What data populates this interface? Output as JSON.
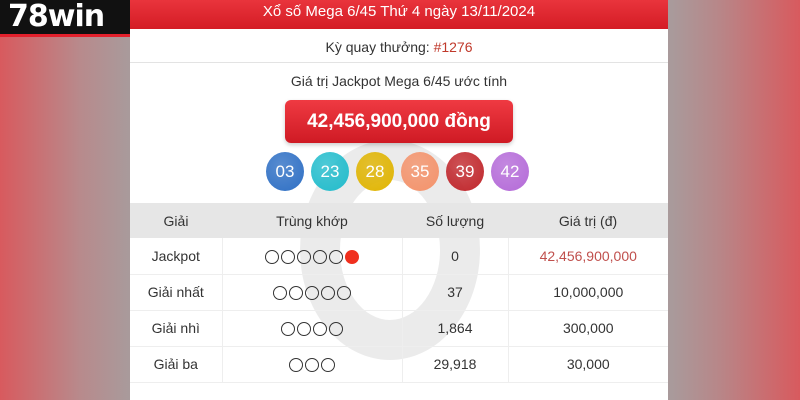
{
  "logo": "78win",
  "header": {
    "title": "Xổ số Mega 6/45 Thứ 4 ngày 13/11/2024"
  },
  "draw": {
    "label": "Kỳ quay thưởng: ",
    "number": "#1276"
  },
  "jackpot": {
    "label": "Giá trị Jackpot Mega 6/45 ước tính",
    "value": "42,456,900,000 đồng"
  },
  "balls": [
    {
      "n": "03",
      "color": "#2e6fc4"
    },
    {
      "n": "23",
      "color": "#22bccc"
    },
    {
      "n": "28",
      "color": "#e0b400"
    },
    {
      "n": "35",
      "color": "#f4926a"
    },
    {
      "n": "39",
      "color": "#c0262b"
    },
    {
      "n": "42",
      "color": "#b46ad8"
    }
  ],
  "table": {
    "headers": [
      "Giải",
      "Trùng khớp",
      "Số lượng",
      "Giá trị (đ)"
    ],
    "rows": [
      {
        "prize": "Jackpot",
        "matches": 5,
        "special": true,
        "count": "0",
        "value": "42,456,900,000",
        "highlight": true
      },
      {
        "prize": "Giải nhất",
        "matches": 5,
        "special": false,
        "count": "37",
        "value": "10,000,000"
      },
      {
        "prize": "Giải nhì",
        "matches": 4,
        "special": false,
        "count": "1,864",
        "value": "300,000"
      },
      {
        "prize": "Giải ba",
        "matches": 3,
        "special": false,
        "count": "29,918",
        "value": "30,000"
      }
    ]
  }
}
